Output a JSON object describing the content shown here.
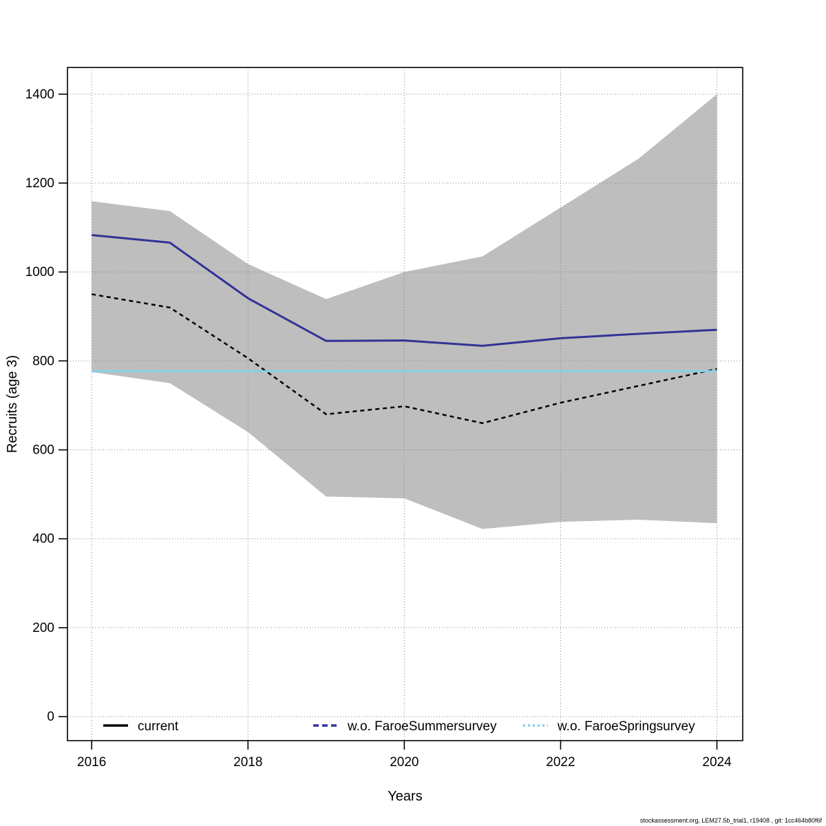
{
  "footer": {
    "text": "stockassessment.org, LEM27.5b_trial1, r19408 , git: 1cc464b80f6f"
  },
  "chart_data": {
    "type": "line",
    "title": "",
    "xlabel": "Years",
    "ylabel": "Recruits (age 3)",
    "x": [
      2016,
      2017,
      2018,
      2019,
      2020,
      2021,
      2022,
      2023,
      2024
    ],
    "xticks": [
      2016,
      2018,
      2020,
      2022,
      2024
    ],
    "yticks": [
      0,
      200,
      400,
      600,
      800,
      1000,
      1200,
      1400
    ],
    "xlim": [
      2015.69,
      2024.33
    ],
    "ylim": [
      -54,
      1460
    ],
    "grid": true,
    "legend_position": "bottom-inside",
    "series": [
      {
        "name": "current",
        "color": "#000000",
        "line_style": "dashed",
        "dash": "6 5",
        "width": 2.5,
        "legend_dash": "none",
        "values": [
          950,
          920,
          806,
          680,
          698,
          660,
          706,
          744,
          782
        ]
      },
      {
        "name": "w.o. FaroeSummersurvey",
        "color": "#323296",
        "line_style": "solid",
        "dash": "none",
        "width": 3,
        "legend_dash": "8 5",
        "values": [
          1083,
          1066,
          941,
          845,
          846,
          834,
          851,
          861,
          870
        ]
      },
      {
        "name": "w.o. FaroeSpringsurvey",
        "color": "#87CEEB",
        "line_style": "solid",
        "dash": "none",
        "width": 3,
        "legend_dash": "3 4",
        "values": [
          777,
          777,
          777,
          777,
          777,
          777,
          777,
          777,
          777
        ]
      }
    ],
    "confidence_band": {
      "applies_to": "current",
      "color": "#BEBEBE",
      "upper": [
        1159,
        1137,
        1018,
        939,
        1000,
        1035,
        1145,
        1255,
        1400
      ],
      "lower": [
        775,
        750,
        640,
        495,
        491,
        422,
        438,
        443,
        435
      ]
    }
  }
}
